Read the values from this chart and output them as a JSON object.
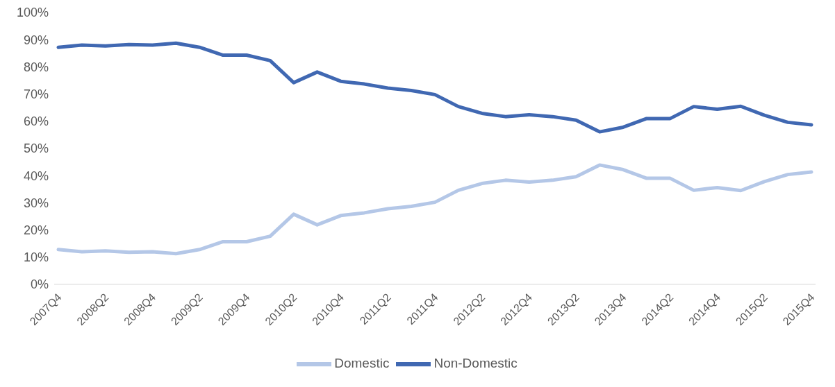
{
  "chart_data": {
    "type": "line",
    "categories": [
      "2007Q4",
      null,
      "2008Q2",
      null,
      "2008Q4",
      null,
      "2009Q2",
      null,
      "2009Q4",
      null,
      "2010Q2",
      null,
      "2010Q4",
      null,
      "2011Q2",
      null,
      "2011Q4",
      null,
      "2012Q2",
      null,
      "2012Q4",
      null,
      "2013Q2",
      null,
      "2013Q4",
      null,
      "2014Q2",
      null,
      "2014Q4",
      null,
      "2015Q2",
      null,
      "2015Q4"
    ],
    "series": [
      {
        "name": "Non-Domestic",
        "color": "#4068b2",
        "values": [
          87.2,
          88,
          87.7,
          88.2,
          88,
          88.7,
          87.2,
          84.3,
          84.3,
          82.3,
          74.2,
          78.1,
          74.7,
          73.7,
          72.2,
          71.3,
          69.8,
          65.4,
          62.9,
          61.7,
          62.4,
          61.7,
          60.4,
          56.1,
          57.8,
          61,
          61,
          65.4,
          64.4,
          65.5,
          62.2,
          59.6,
          58.7
        ]
      },
      {
        "name": "Domestic",
        "color": "#b4c7e7",
        "values": [
          12.8,
          12,
          12.3,
          11.8,
          12,
          11.3,
          12.8,
          15.7,
          15.7,
          17.7,
          25.8,
          21.9,
          25.3,
          26.3,
          27.8,
          28.7,
          30.2,
          34.6,
          37.1,
          38.3,
          37.6,
          38.3,
          39.6,
          43.9,
          42.2,
          39,
          39,
          34.6,
          35.6,
          34.5,
          37.8,
          40.4,
          41.3
        ]
      }
    ],
    "ylim": [
      0,
      100
    ],
    "yticks": [
      {
        "value": 0,
        "label": "0%"
      },
      {
        "value": 10,
        "label": "10%"
      },
      {
        "value": 20,
        "label": "20%"
      },
      {
        "value": 30,
        "label": "30%"
      },
      {
        "value": 40,
        "label": "40%"
      },
      {
        "value": 50,
        "label": "50%"
      },
      {
        "value": 60,
        "label": "60%"
      },
      {
        "value": 70,
        "label": "70%"
      },
      {
        "value": 80,
        "label": "80%"
      },
      {
        "value": 90,
        "label": "90%"
      },
      {
        "value": 100,
        "label": "100%"
      }
    ],
    "grid": false,
    "legend": "bottom",
    "marker": "none",
    "line_style": "solid"
  }
}
